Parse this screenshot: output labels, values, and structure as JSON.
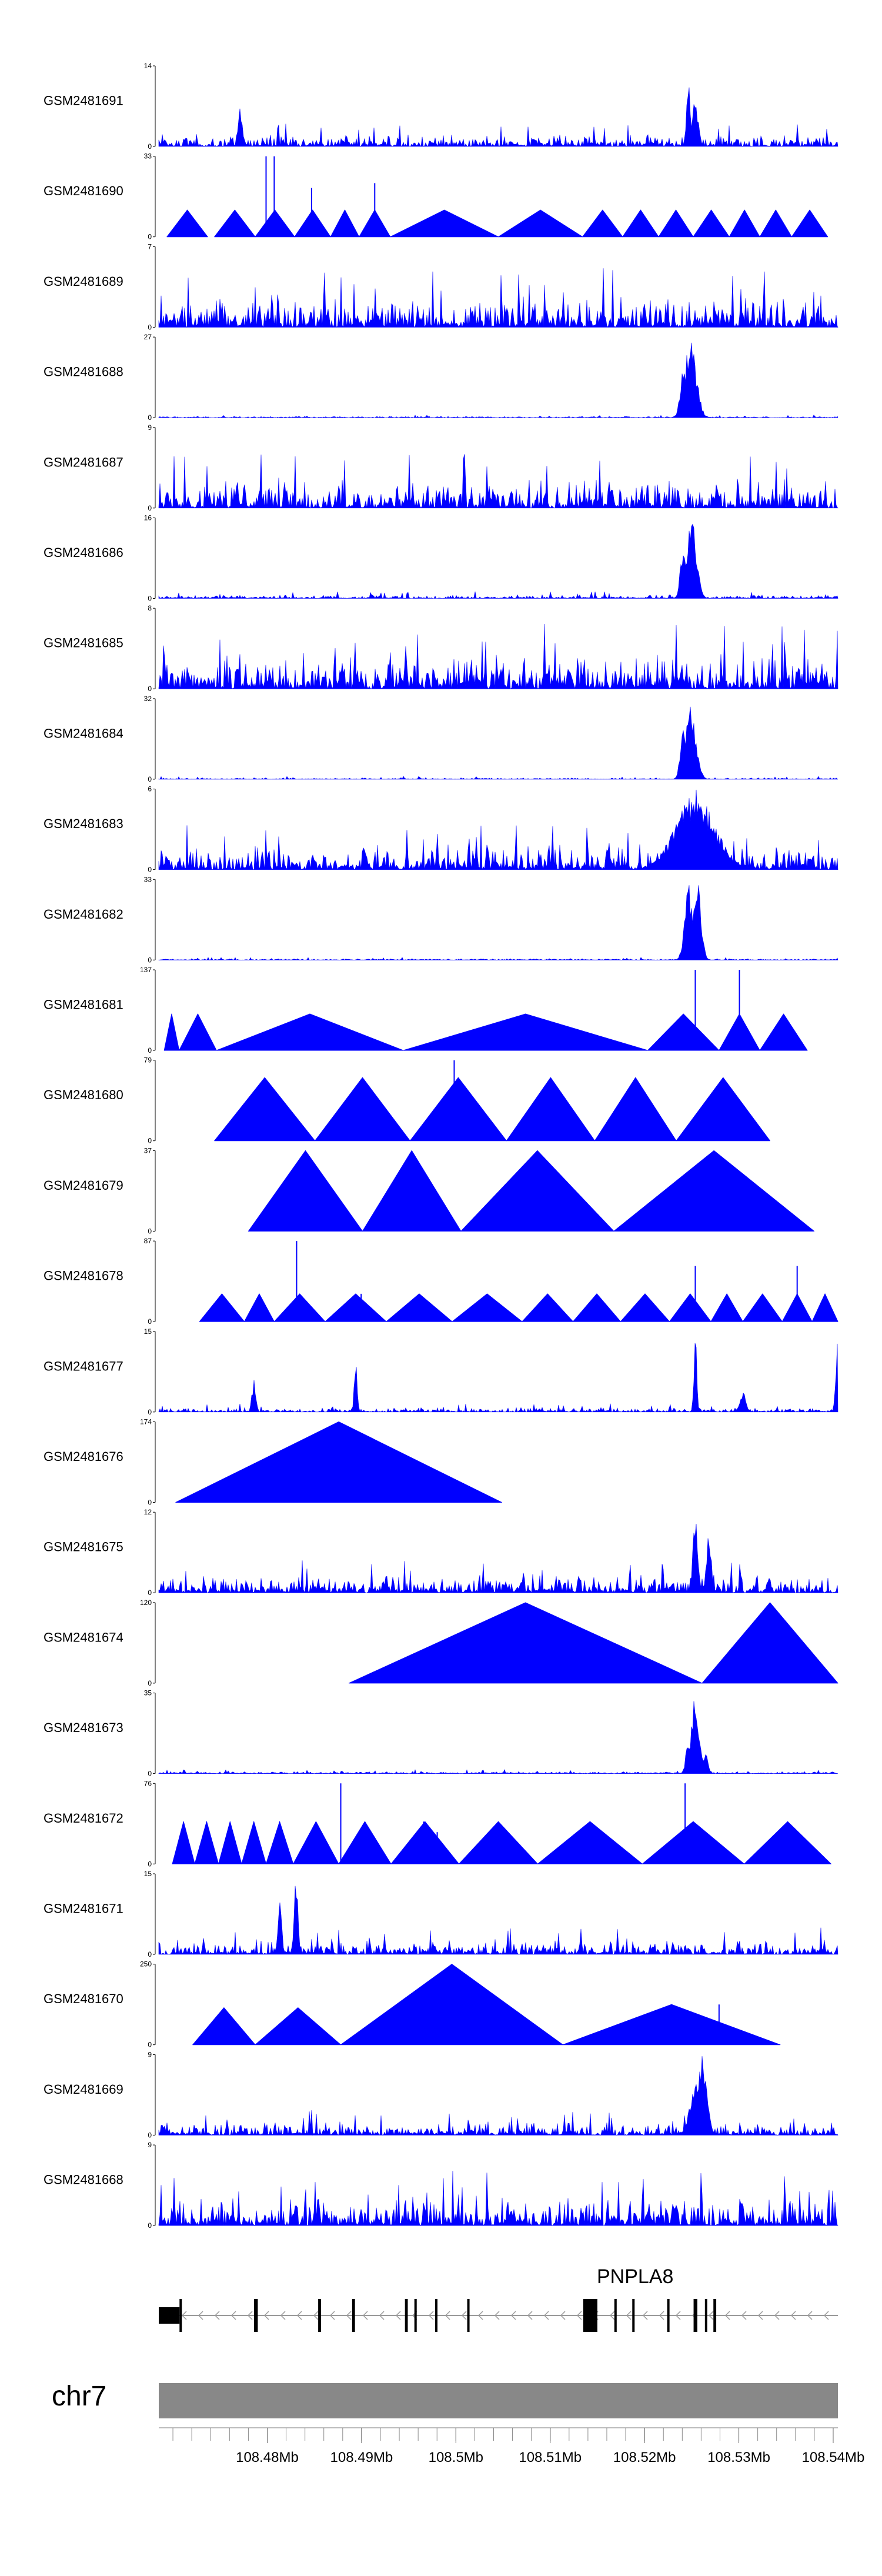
{
  "chart_data": {
    "type": "area",
    "region": {
      "start": 108.4685,
      "end": 108.5405
    },
    "ylim_min": 0,
    "color": "#0000FF",
    "tracks": [
      {
        "name": "GSM2481691",
        "ymax": 14,
        "style": "dense",
        "noise": 4,
        "peaks": [
          [
            0.78,
            14,
            0.004
          ],
          [
            0.79,
            9,
            0.006
          ],
          [
            0.12,
            7,
            0.004
          ]
        ]
      },
      {
        "name": "GSM2481690",
        "ymax": 33,
        "style": "tri",
        "tris": [
          [
            0.012,
            0.072,
            11
          ],
          [
            0.082,
            0.142,
            11
          ],
          [
            0.142,
            0.2,
            11
          ],
          [
            0.2,
            0.253,
            11
          ],
          [
            0.253,
            0.295,
            11
          ],
          [
            0.295,
            0.341,
            11
          ],
          [
            0.341,
            0.5,
            11
          ],
          [
            0.5,
            0.624,
            11
          ],
          [
            0.624,
            0.683,
            11
          ],
          [
            0.683,
            0.736,
            11
          ],
          [
            0.736,
            0.787,
            11
          ],
          [
            0.787,
            0.84,
            11
          ],
          [
            0.84,
            0.885,
            11
          ],
          [
            0.885,
            0.932,
            11
          ],
          [
            0.932,
            0.985,
            11
          ]
        ],
        "spikes": [
          [
            0.158,
            33
          ],
          [
            0.17,
            33
          ],
          [
            0.225,
            20
          ],
          [
            0.318,
            22
          ]
        ]
      },
      {
        "name": "GSM2481689",
        "ymax": 7,
        "style": "dense",
        "noise": 5.2,
        "peaks": []
      },
      {
        "name": "GSM2481688",
        "ymax": 27,
        "style": "dense",
        "noise": 0.9,
        "peaks": [
          [
            0.783,
            27,
            0.012
          ],
          [
            0.772,
            18,
            0.006
          ]
        ]
      },
      {
        "name": "GSM2481687",
        "ymax": 9,
        "style": "dense",
        "noise": 6.2,
        "peaks": []
      },
      {
        "name": "GSM2481686",
        "ymax": 16,
        "style": "dense",
        "noise": 1.4,
        "peaks": [
          [
            0.785,
            16,
            0.01
          ],
          [
            0.772,
            10,
            0.006
          ]
        ]
      },
      {
        "name": "GSM2481685",
        "ymax": 8,
        "style": "dense",
        "noise": 6.5,
        "peaks": []
      },
      {
        "name": "GSM2481684",
        "ymax": 32,
        "style": "dense",
        "noise": 1.2,
        "peaks": [
          [
            0.783,
            32,
            0.011
          ],
          [
            0.772,
            20,
            0.006
          ]
        ]
      },
      {
        "name": "GSM2481683",
        "ymax": 6,
        "style": "dense",
        "noise": 3.6,
        "peaks": [
          [
            0.79,
            6,
            0.04
          ]
        ]
      },
      {
        "name": "GSM2481682",
        "ymax": 33,
        "style": "dense",
        "noise": 1.1,
        "peaks": [
          [
            0.78,
            33,
            0.008
          ],
          [
            0.793,
            33,
            0.008
          ]
        ]
      },
      {
        "name": "GSM2481681",
        "ymax": 137,
        "style": "tri",
        "tris": [
          [
            0.008,
            0.03,
            62
          ],
          [
            0.03,
            0.085,
            62
          ],
          [
            0.085,
            0.36,
            62
          ],
          [
            0.36,
            0.72,
            62
          ],
          [
            0.72,
            0.825,
            62
          ],
          [
            0.825,
            0.885,
            62
          ],
          [
            0.885,
            0.955,
            62
          ]
        ],
        "spikes": [
          [
            0.79,
            137
          ],
          [
            0.855,
            137
          ]
        ]
      },
      {
        "name": "GSM2481680",
        "ymax": 79,
        "style": "tri",
        "tris": [
          [
            0.082,
            0.23,
            62
          ],
          [
            0.23,
            0.37,
            62
          ],
          [
            0.37,
            0.512,
            62
          ],
          [
            0.512,
            0.642,
            62
          ],
          [
            0.642,
            0.762,
            62
          ],
          [
            0.762,
            0.9,
            62
          ]
        ],
        "spikes": [
          [
            0.435,
            79
          ],
          [
            0.6,
            35
          ],
          [
            0.728,
            32
          ]
        ]
      },
      {
        "name": "GSM2481679",
        "ymax": 37,
        "style": "tri",
        "tris": [
          [
            0.132,
            0.3,
            37
          ],
          [
            0.3,
            0.445,
            37
          ],
          [
            0.445,
            0.67,
            37
          ],
          [
            0.67,
            0.965,
            37
          ]
        ],
        "spikes": []
      },
      {
        "name": "GSM2481678",
        "ymax": 87,
        "style": "tri",
        "tris": [
          [
            0.06,
            0.126,
            30
          ],
          [
            0.126,
            0.17,
            30
          ],
          [
            0.17,
            0.245,
            30
          ],
          [
            0.245,
            0.335,
            30
          ],
          [
            0.335,
            0.432,
            30
          ],
          [
            0.432,
            0.535,
            30
          ],
          [
            0.535,
            0.61,
            30
          ],
          [
            0.61,
            0.68,
            30
          ],
          [
            0.68,
            0.752,
            30
          ],
          [
            0.752,
            0.813,
            30
          ],
          [
            0.813,
            0.86,
            30
          ],
          [
            0.86,
            0.918,
            30
          ],
          [
            0.918,
            0.962,
            30
          ],
          [
            0.962,
            1.0,
            30
          ]
        ],
        "spikes": [
          [
            0.203,
            87
          ],
          [
            0.298,
            30
          ],
          [
            0.79,
            60
          ],
          [
            0.94,
            60
          ]
        ]
      },
      {
        "name": "GSM2481677",
        "ymax": 15,
        "style": "dense",
        "noise": 1.6,
        "peaks": [
          [
            0.79,
            15,
            0.003
          ],
          [
            0.29,
            10,
            0.003
          ],
          [
            0.14,
            6,
            0.004
          ],
          [
            1.0,
            14,
            0.004
          ],
          [
            0.86,
            4,
            0.006
          ]
        ]
      },
      {
        "name": "GSM2481676",
        "ymax": 174,
        "style": "tri",
        "tris": [
          [
            0.025,
            0.505,
            174
          ]
        ],
        "spikes": []
      },
      {
        "name": "GSM2481675",
        "ymax": 12,
        "style": "dense",
        "noise": 5,
        "peaks": [
          [
            0.79,
            12,
            0.005
          ],
          [
            0.81,
            9,
            0.005
          ]
        ]
      },
      {
        "name": "GSM2481674",
        "ymax": 120,
        "style": "tri",
        "tris": [
          [
            0.28,
            0.8,
            120
          ],
          [
            0.8,
            1.0,
            120
          ]
        ],
        "spikes": []
      },
      {
        "name": "GSM2481673",
        "ymax": 35,
        "style": "dense",
        "noise": 1.7,
        "peaks": [
          [
            0.79,
            35,
            0.008
          ],
          [
            0.78,
            18,
            0.005
          ],
          [
            0.805,
            9,
            0.005
          ]
        ]
      },
      {
        "name": "GSM2481672",
        "ymax": 76,
        "style": "tri",
        "tris": [
          [
            0.02,
            0.053,
            40
          ],
          [
            0.053,
            0.088,
            40
          ],
          [
            0.088,
            0.122,
            40
          ],
          [
            0.122,
            0.158,
            40
          ],
          [
            0.158,
            0.198,
            40
          ],
          [
            0.198,
            0.265,
            40
          ],
          [
            0.265,
            0.342,
            40
          ],
          [
            0.342,
            0.442,
            40
          ],
          [
            0.442,
            0.558,
            40
          ],
          [
            0.558,
            0.712,
            40
          ],
          [
            0.712,
            0.862,
            40
          ],
          [
            0.862,
            0.99,
            40
          ]
        ],
        "spikes": [
          [
            0.268,
            76
          ],
          [
            0.775,
            76
          ],
          [
            0.39,
            40
          ],
          [
            0.41,
            30
          ]
        ]
      },
      {
        "name": "GSM2481671",
        "ymax": 15,
        "style": "dense",
        "noise": 5,
        "peaks": [
          [
            0.202,
            15,
            0.004
          ],
          [
            0.178,
            10,
            0.004
          ]
        ]
      },
      {
        "name": "GSM2481670",
        "ymax": 250,
        "style": "tri",
        "tris": [
          [
            0.05,
            0.142,
            115
          ],
          [
            0.142,
            0.268,
            115
          ],
          [
            0.268,
            0.595,
            250
          ],
          [
            0.595,
            0.915,
            125
          ]
        ],
        "spikes": [
          [
            0.825,
            125
          ]
        ]
      },
      {
        "name": "GSM2481669",
        "ymax": 9,
        "style": "dense",
        "noise": 2.8,
        "peaks": [
          [
            0.8,
            9,
            0.01
          ],
          [
            0.79,
            6,
            0.012
          ]
        ]
      },
      {
        "name": "GSM2481668",
        "ymax": 9,
        "style": "dense",
        "noise": 6.2,
        "peaks": []
      }
    ],
    "gene": {
      "name": "PNPLA8",
      "strand": "-",
      "exons": [
        [
          108.4685,
          108.4707,
          0.5
        ],
        [
          108.4707,
          108.4709,
          1
        ],
        [
          108.4786,
          108.479,
          1
        ],
        [
          108.4854,
          108.4857,
          1
        ],
        [
          108.489,
          108.4893,
          1
        ],
        [
          108.4946,
          108.4949,
          1
        ],
        [
          108.4956,
          108.4958,
          1
        ],
        [
          108.4978,
          108.498,
          1
        ],
        [
          108.5012,
          108.5014,
          1
        ],
        [
          108.5135,
          108.515,
          1
        ],
        [
          108.5168,
          108.517,
          1
        ],
        [
          108.5187,
          108.5189,
          1
        ],
        [
          108.5224,
          108.5226,
          1
        ],
        [
          108.5252,
          108.5256,
          1
        ],
        [
          108.5264,
          108.5266,
          1
        ],
        [
          108.5273,
          108.5276,
          1
        ]
      ]
    },
    "chromosome": "chr7",
    "xticks": [
      {
        "value": 108.48,
        "label": "108.48Mb"
      },
      {
        "value": 108.49,
        "label": "108.49Mb"
      },
      {
        "value": 108.5,
        "label": "108.5Mb"
      },
      {
        "value": 108.51,
        "label": "108.51Mb"
      },
      {
        "value": 108.52,
        "label": "108.52Mb"
      },
      {
        "value": 108.53,
        "label": "108.53Mb"
      },
      {
        "value": 108.54,
        "label": "108.54Mb"
      }
    ],
    "minor_tick_step": 0.002
  }
}
